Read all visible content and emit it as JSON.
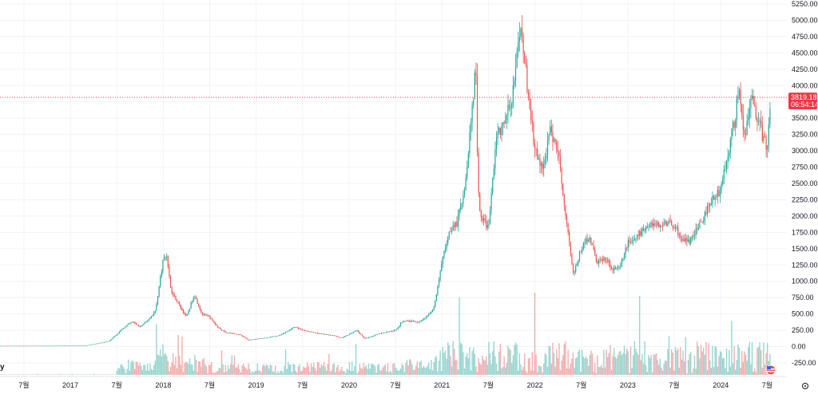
{
  "chart_data": {
    "type": "candlestick",
    "title": "",
    "x_axis": {
      "tick_labels": [
        "7월",
        "2017",
        "7월",
        "2018",
        "7월",
        "2019",
        "7월",
        "2020",
        "7월",
        "2021",
        "7월",
        "2022",
        "7월",
        "2023",
        "7월",
        "2024",
        "7월"
      ],
      "range": [
        "2016-03",
        "2024-07"
      ]
    },
    "y_axis": {
      "tick_labels": [
        "5250.00",
        "5000.00",
        "4750.00",
        "4500.00",
        "4250.00",
        "4000.00",
        "3750.00",
        "3500.00",
        "3250.00",
        "3000.00",
        "2750.00",
        "2500.00",
        "2250.00",
        "2000.00",
        "1750.00",
        "1500.00",
        "1250.00",
        "1000.00",
        "750.00",
        "500.00",
        "250.00",
        "0.00",
        "-250.00"
      ],
      "range": [
        -250,
        5250
      ],
      "position": "right"
    },
    "last_price": {
      "value": "3819.18",
      "countdown": "06:54:14",
      "color": "#f23645"
    },
    "up_color": "#26a69a",
    "down_color": "#ef5350",
    "grid": true,
    "price_path": [
      [
        "2016-03",
        11
      ],
      [
        "2016-09",
        12
      ],
      [
        "2017-03",
        15
      ],
      [
        "2017-06",
        80
      ],
      [
        "2017-08",
        300
      ],
      [
        "2017-09",
        380
      ],
      [
        "2017-10",
        300
      ],
      [
        "2017-11",
        400
      ],
      [
        "2017-12",
        550
      ],
      [
        "2018-01",
        1350
      ],
      [
        "2018-01-15",
        1400
      ],
      [
        "2018-02",
        850
      ],
      [
        "2018-03",
        650
      ],
      [
        "2018-04",
        450
      ],
      [
        "2018-05",
        800
      ],
      [
        "2018-06",
        500
      ],
      [
        "2018-07",
        450
      ],
      [
        "2018-08",
        300
      ],
      [
        "2018-09",
        220
      ],
      [
        "2018-11",
        180
      ],
      [
        "2018-12",
        100
      ],
      [
        "2019-02",
        130
      ],
      [
        "2019-04",
        170
      ],
      [
        "2019-06",
        300
      ],
      [
        "2019-07",
        250
      ],
      [
        "2019-09",
        200
      ],
      [
        "2019-11",
        170
      ],
      [
        "2019-12",
        130
      ],
      [
        "2020-02",
        250
      ],
      [
        "2020-03",
        120
      ],
      [
        "2020-05",
        200
      ],
      [
        "2020-07",
        250
      ],
      [
        "2020-08",
        400
      ],
      [
        "2020-10",
        380
      ],
      [
        "2020-11",
        450
      ],
      [
        "2020-12",
        600
      ],
      [
        "2021-01",
        1300
      ],
      [
        "2021-02",
        1800
      ],
      [
        "2021-03",
        1900
      ],
      [
        "2021-04",
        2500
      ],
      [
        "2021-05",
        3800
      ],
      [
        "2021-05-12",
        4300
      ],
      [
        "2021-05-20",
        2500
      ],
      [
        "2021-06",
        2000
      ],
      [
        "2021-07",
        1800
      ],
      [
        "2021-08",
        3200
      ],
      [
        "2021-09",
        3400
      ],
      [
        "2021-10",
        3800
      ],
      [
        "2021-11",
        4700
      ],
      [
        "2021-11-10",
        4850
      ],
      [
        "2021-12",
        4000
      ],
      [
        "2022-01",
        3000
      ],
      [
        "2022-02",
        2700
      ],
      [
        "2022-03",
        3300
      ],
      [
        "2022-04",
        3000
      ],
      [
        "2022-05",
        2000
      ],
      [
        "2022-06",
        1100
      ],
      [
        "2022-07",
        1500
      ],
      [
        "2022-08",
        1700
      ],
      [
        "2022-09",
        1300
      ],
      [
        "2022-10",
        1350
      ],
      [
        "2022-11",
        1200
      ],
      [
        "2022-12",
        1200
      ],
      [
        "2023-01",
        1600
      ],
      [
        "2023-02",
        1650
      ],
      [
        "2023-03",
        1800
      ],
      [
        "2023-04",
        1900
      ],
      [
        "2023-05",
        1850
      ],
      [
        "2023-06",
        1900
      ],
      [
        "2023-07",
        1850
      ],
      [
        "2023-08",
        1650
      ],
      [
        "2023-09",
        1600
      ],
      [
        "2023-10",
        1800
      ],
      [
        "2023-11",
        2050
      ],
      [
        "2023-12",
        2300
      ],
      [
        "2024-01",
        2400
      ],
      [
        "2024-02",
        3000
      ],
      [
        "2024-03",
        3600
      ],
      [
        "2024-03-12",
        4050
      ],
      [
        "2024-04",
        3200
      ],
      [
        "2024-05",
        3800
      ],
      [
        "2024-06",
        3400
      ],
      [
        "2024-07",
        3000
      ],
      [
        "2024-07-15",
        3819.18
      ]
    ]
  }
}
